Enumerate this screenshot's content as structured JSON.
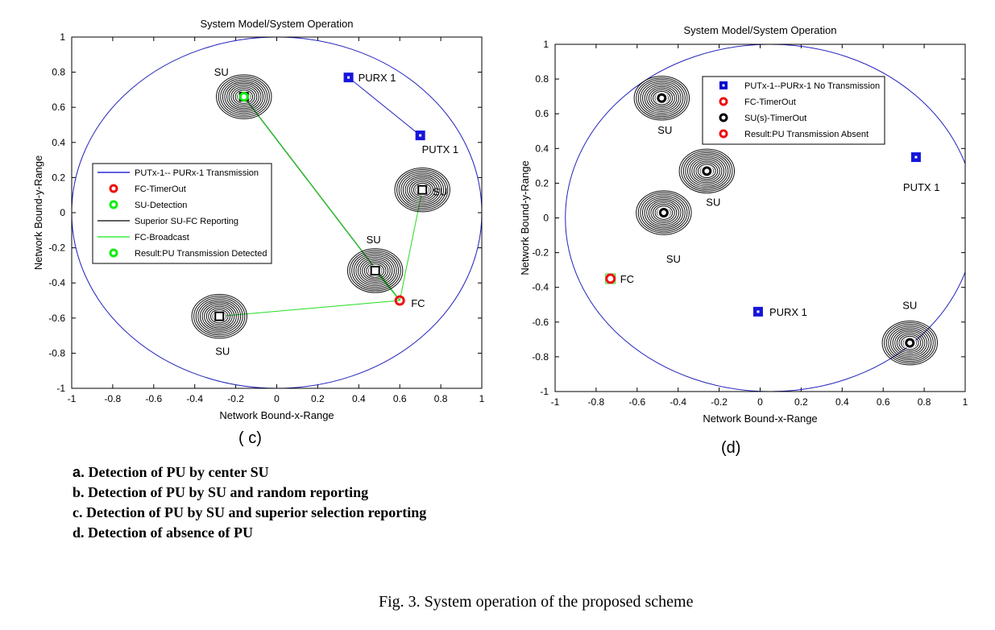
{
  "chart_data": [
    {
      "type": "scatter",
      "panel_label": "( c)",
      "title": "System Model/System Operation",
      "xlabel": "Network Bound-x-Range",
      "ylabel": "Network Bound-y-Range",
      "xlim": [
        -1,
        1
      ],
      "ylim": [
        -1,
        1
      ],
      "xticks": [
        "-1",
        "-0.8",
        "-0.6",
        "-0.4",
        "-0.2",
        "0",
        "0.2",
        "0.4",
        "0.6",
        "0.8",
        "1"
      ],
      "yticks": [
        "1",
        "0.8",
        "0.6",
        "0.4",
        "0.2",
        "0",
        "-0.2",
        "-0.4",
        "-0.6",
        "-0.8",
        "-1"
      ],
      "boundary_circle": {
        "cx": 0,
        "cy": 0,
        "r": 1
      },
      "nodes": [
        {
          "kind": "PU",
          "label": "PURX 1",
          "x": 0.35,
          "y": 0.77
        },
        {
          "kind": "PU",
          "label": "PUTX 1",
          "x": 0.7,
          "y": 0.44
        },
        {
          "kind": "SU",
          "label": "SU",
          "x": -0.16,
          "y": 0.66,
          "detecting": true
        },
        {
          "kind": "SU",
          "label": "SU",
          "x": 0.71,
          "y": 0.13
        },
        {
          "kind": "SU",
          "label": "SU",
          "x": 0.48,
          "y": -0.33
        },
        {
          "kind": "SU",
          "label": "SU",
          "x": -0.28,
          "y": -0.59
        },
        {
          "kind": "FC",
          "label": "FC",
          "x": 0.6,
          "y": -0.5
        }
      ],
      "links": [
        {
          "type": "transmission",
          "from": [
            0.7,
            0.44
          ],
          "to": [
            0.35,
            0.77
          ]
        },
        {
          "type": "reporting",
          "from": [
            -0.16,
            0.66
          ],
          "to": [
            0.6,
            -0.5
          ]
        },
        {
          "type": "broadcast",
          "from": [
            0.6,
            -0.5
          ],
          "to": [
            -0.16,
            0.66
          ]
        },
        {
          "type": "broadcast",
          "from": [
            0.6,
            -0.5
          ],
          "to": [
            0.71,
            0.13
          ]
        },
        {
          "type": "broadcast",
          "from": [
            0.6,
            -0.5
          ],
          "to": [
            0.48,
            -0.33
          ]
        },
        {
          "type": "broadcast",
          "from": [
            0.6,
            -0.5
          ],
          "to": [
            -0.28,
            -0.59
          ]
        }
      ],
      "legend": [
        {
          "label": "PUTx-1-- PURx-1 Transmission",
          "marker": "line",
          "color": "#0000cc"
        },
        {
          "label": "FC-TimerOut",
          "marker": "ring",
          "color": "#ee1111"
        },
        {
          "label": "SU-Detection",
          "marker": "ring",
          "color": "#11ee11"
        },
        {
          "label": "Superior SU-FC Reporting",
          "marker": "line",
          "color": "#000000"
        },
        {
          "label": "FC-Broadcast",
          "marker": "line",
          "color": "#11ee11"
        },
        {
          "label": "Result:PU Transmission Detected",
          "marker": "ring",
          "color": "#11ee11"
        }
      ]
    },
    {
      "type": "scatter",
      "panel_label": "(d)",
      "title": "System Model/System Operation",
      "xlabel": "Network Bound-x-Range",
      "ylabel": "Network Bound-y-Range",
      "xlim": [
        -1,
        1
      ],
      "ylim": [
        -1,
        1
      ],
      "xticks": [
        "-1",
        "-0.8",
        "-0.6",
        "-0.4",
        "-0.2",
        "0",
        "0.2",
        "0.4",
        "0.6",
        "0.8",
        "1"
      ],
      "yticks": [
        "1",
        "0.8",
        "0.6",
        "0.4",
        "0.2",
        "0",
        "-0.2",
        "-0.4",
        "-0.6",
        "-0.8",
        "-1"
      ],
      "boundary_circle": {
        "cx": 0.05,
        "cy": 0,
        "r": 1
      },
      "nodes": [
        {
          "kind": "PU",
          "label": "PUTX 1",
          "x": 0.76,
          "y": 0.35
        },
        {
          "kind": "PU",
          "label": "PURX 1",
          "x": -0.01,
          "y": -0.54
        },
        {
          "kind": "SU",
          "label": "SU",
          "x": -0.48,
          "y": 0.69
        },
        {
          "kind": "SU",
          "label": "SU",
          "x": -0.26,
          "y": 0.27
        },
        {
          "kind": "SU",
          "label": "SU",
          "x": -0.47,
          "y": 0.03
        },
        {
          "kind": "SU",
          "label": "SU",
          "x": 0.73,
          "y": -0.72
        },
        {
          "kind": "FC",
          "label": "FC",
          "x": -0.73,
          "y": -0.35
        }
      ],
      "links": [],
      "legend": [
        {
          "label": "PUTx-1--PURx-1 No Transmission",
          "marker": "square",
          "color": "#0000cc"
        },
        {
          "label": "FC-TimerOut",
          "marker": "ring",
          "color": "#ee1111"
        },
        {
          "label": "SU(s)-TimerOut",
          "marker": "ring",
          "color": "#000000"
        },
        {
          "label": "Result:PU Transmission Absent",
          "marker": "ring",
          "color": "#ee1111"
        }
      ]
    }
  ],
  "captions": [
    {
      "letter": "a.",
      "text": " Detection of PU by center SU"
    },
    {
      "letter": "b.",
      "text": " Detection of PU by SU and random reporting"
    },
    {
      "letter": "c.",
      "text": " Detection of PU by SU and superior selection reporting"
    },
    {
      "letter": "d.",
      "text": " Detection of absence of PU"
    }
  ],
  "figure_caption": "Fig. 3.  System operation of the proposed scheme"
}
